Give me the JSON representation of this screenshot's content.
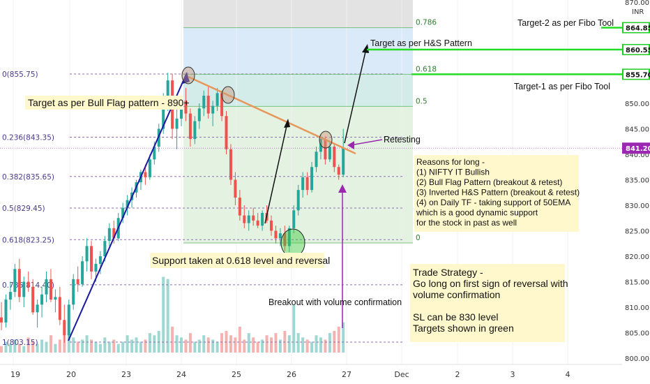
{
  "chart_data": {
    "type": "candlestick",
    "currency": "INR",
    "top_tick_partial": "870.00",
    "y_ticks": [
      "850.00",
      "845.00",
      "840.00",
      "835.00",
      "830.00",
      "825.00",
      "820.00",
      "815.00",
      "810.00",
      "805.00",
      "800.00"
    ],
    "x_ticks": [
      "19",
      "20",
      "23",
      "24",
      "25",
      "26",
      "27",
      "Dec",
      "2",
      "3",
      "4"
    ],
    "ylim": [
      799,
      871
    ],
    "price_badges": [
      {
        "value": "864.85",
        "color": "#22cc22"
      },
      {
        "value": "860.55",
        "color": "#22cc22"
      },
      {
        "value": "855.70",
        "color": "#22cc22"
      },
      {
        "value": "841.20",
        "color": "#9c27b0"
      }
    ],
    "fib_left": [
      {
        "label": "0(855.75)",
        "price": 855.75
      },
      {
        "label": "0.236(843.35)",
        "price": 843.35
      },
      {
        "label": "0.382(835.65)",
        "price": 835.65
      },
      {
        "label": "0.5(829.45)",
        "price": 829.45
      },
      {
        "label": "0.618(823.25)",
        "price": 823.25
      },
      {
        "label": "0.786(814.40)",
        "price": 814.4
      },
      {
        "label": "1(803.15)",
        "price": 803.15
      }
    ],
    "fib_right": [
      {
        "label": "0.786",
        "price": 864.85
      },
      {
        "label": "0.618",
        "price": 855.7
      },
      {
        "label": "0.5",
        "price": 849.4
      },
      {
        "label": "0",
        "price": 822.6
      }
    ],
    "series": [
      {
        "values": [
          {
            "o": 808.0,
            "h": 811.0,
            "l": 805.5,
            "c": 807.0
          },
          {
            "o": 807.0,
            "h": 812.5,
            "l": 806.0,
            "c": 811.5
          },
          {
            "o": 811.5,
            "h": 815.0,
            "l": 809.5,
            "c": 813.0
          },
          {
            "o": 813.0,
            "h": 818.5,
            "l": 812.0,
            "c": 817.5
          },
          {
            "o": 817.5,
            "h": 819.5,
            "l": 811.0,
            "c": 812.0
          },
          {
            "o": 812.0,
            "h": 816.0,
            "l": 810.0,
            "c": 815.0
          },
          {
            "o": 815.0,
            "h": 817.0,
            "l": 813.0,
            "c": 814.0
          },
          {
            "o": 814.0,
            "h": 815.5,
            "l": 808.5,
            "c": 809.0
          },
          {
            "o": 809.0,
            "h": 811.5,
            "l": 806.0,
            "c": 810.5
          },
          {
            "o": 810.5,
            "h": 814.0,
            "l": 808.0,
            "c": 812.5
          },
          {
            "o": 812.5,
            "h": 817.0,
            "l": 811.0,
            "c": 815.5
          },
          {
            "o": 815.5,
            "h": 817.5,
            "l": 811.0,
            "c": 811.5
          },
          {
            "o": 811.5,
            "h": 813.5,
            "l": 809.0,
            "c": 812.0
          },
          {
            "o": 812.0,
            "h": 814.0,
            "l": 806.5,
            "c": 807.5
          },
          {
            "o": 807.5,
            "h": 810.5,
            "l": 803.0,
            "c": 804.5
          },
          {
            "o": 804.5,
            "h": 811.5,
            "l": 803.8,
            "c": 810.5
          },
          {
            "o": 810.5,
            "h": 816.5,
            "l": 809.5,
            "c": 815.5
          },
          {
            "o": 815.5,
            "h": 818.0,
            "l": 813.0,
            "c": 814.5
          },
          {
            "o": 814.5,
            "h": 820.0,
            "l": 814.0,
            "c": 819.0
          },
          {
            "o": 819.0,
            "h": 823.5,
            "l": 817.0,
            "c": 822.0
          },
          {
            "o": 822.0,
            "h": 823.0,
            "l": 815.5,
            "c": 817.0
          },
          {
            "o": 817.0,
            "h": 819.5,
            "l": 815.0,
            "c": 818.5
          },
          {
            "o": 818.5,
            "h": 821.0,
            "l": 816.5,
            "c": 820.0
          },
          {
            "o": 820.0,
            "h": 824.0,
            "l": 819.0,
            "c": 823.0
          },
          {
            "o": 823.0,
            "h": 826.5,
            "l": 822.0,
            "c": 825.5
          },
          {
            "o": 825.5,
            "h": 827.0,
            "l": 822.5,
            "c": 823.5
          },
          {
            "o": 823.5,
            "h": 828.5,
            "l": 823.0,
            "c": 827.5
          },
          {
            "o": 827.5,
            "h": 830.5,
            "l": 826.5,
            "c": 829.5
          },
          {
            "o": 829.5,
            "h": 832.0,
            "l": 828.0,
            "c": 831.0
          },
          {
            "o": 831.0,
            "h": 833.5,
            "l": 829.5,
            "c": 832.5
          },
          {
            "o": 832.5,
            "h": 835.0,
            "l": 831.5,
            "c": 834.5
          },
          {
            "o": 834.5,
            "h": 837.0,
            "l": 833.0,
            "c": 836.5
          },
          {
            "o": 836.5,
            "h": 838.0,
            "l": 834.0,
            "c": 835.5
          },
          {
            "o": 835.5,
            "h": 840.0,
            "l": 835.0,
            "c": 839.0
          },
          {
            "o": 839.0,
            "h": 842.5,
            "l": 838.0,
            "c": 841.5
          },
          {
            "o": 841.5,
            "h": 846.0,
            "l": 840.5,
            "c": 845.0
          },
          {
            "o": 845.0,
            "h": 852.0,
            "l": 844.0,
            "c": 851.0
          },
          {
            "o": 851.0,
            "h": 856.0,
            "l": 848.5,
            "c": 854.5
          },
          {
            "o": 854.5,
            "h": 855.8,
            "l": 843.0,
            "c": 845.0
          },
          {
            "o": 845.0,
            "h": 849.0,
            "l": 841.0,
            "c": 847.0
          },
          {
            "o": 847.0,
            "h": 851.5,
            "l": 845.5,
            "c": 850.5
          },
          {
            "o": 850.5,
            "h": 853.0,
            "l": 846.5,
            "c": 848.0
          },
          {
            "o": 848.0,
            "h": 849.0,
            "l": 841.5,
            "c": 843.0
          },
          {
            "o": 843.0,
            "h": 847.5,
            "l": 842.0,
            "c": 846.5
          },
          {
            "o": 846.5,
            "h": 850.0,
            "l": 845.0,
            "c": 849.0
          },
          {
            "o": 849.0,
            "h": 852.5,
            "l": 847.5,
            "c": 851.5
          },
          {
            "o": 851.5,
            "h": 853.5,
            "l": 847.0,
            "c": 848.0
          },
          {
            "o": 848.0,
            "h": 850.5,
            "l": 845.5,
            "c": 849.5
          },
          {
            "o": 849.5,
            "h": 853.0,
            "l": 848.5,
            "c": 852.0
          },
          {
            "o": 852.0,
            "h": 852.5,
            "l": 846.5,
            "c": 847.5
          },
          {
            "o": 847.5,
            "h": 848.5,
            "l": 840.0,
            "c": 841.0
          },
          {
            "o": 841.0,
            "h": 842.0,
            "l": 834.0,
            "c": 835.0
          },
          {
            "o": 835.0,
            "h": 836.5,
            "l": 830.0,
            "c": 831.5
          },
          {
            "o": 831.5,
            "h": 833.0,
            "l": 827.0,
            "c": 828.0
          },
          {
            "o": 828.0,
            "h": 830.0,
            "l": 825.5,
            "c": 826.5
          },
          {
            "o": 826.5,
            "h": 829.0,
            "l": 825.0,
            "c": 828.0
          },
          {
            "o": 828.0,
            "h": 829.5,
            "l": 826.0,
            "c": 827.0
          },
          {
            "o": 827.0,
            "h": 828.5,
            "l": 825.5,
            "c": 826.0
          },
          {
            "o": 826.0,
            "h": 829.0,
            "l": 825.0,
            "c": 828.5
          },
          {
            "o": 828.5,
            "h": 830.0,
            "l": 826.5,
            "c": 827.0
          },
          {
            "o": 827.0,
            "h": 828.0,
            "l": 824.0,
            "c": 825.0
          },
          {
            "o": 825.0,
            "h": 826.0,
            "l": 822.5,
            "c": 823.5
          },
          {
            "o": 823.5,
            "h": 825.5,
            "l": 822.0,
            "c": 824.5
          },
          {
            "o": 824.5,
            "h": 826.0,
            "l": 821.0,
            "c": 822.0
          },
          {
            "o": 822.0,
            "h": 826.0,
            "l": 820.8,
            "c": 825.5
          },
          {
            "o": 825.5,
            "h": 830.0,
            "l": 824.5,
            "c": 829.0
          },
          {
            "o": 829.0,
            "h": 834.0,
            "l": 828.0,
            "c": 833.0
          },
          {
            "o": 833.0,
            "h": 836.5,
            "l": 831.5,
            "c": 835.5
          },
          {
            "o": 835.5,
            "h": 836.5,
            "l": 832.0,
            "c": 833.0
          },
          {
            "o": 833.0,
            "h": 838.5,
            "l": 832.5,
            "c": 837.5
          },
          {
            "o": 837.5,
            "h": 841.5,
            "l": 836.5,
            "c": 840.5
          },
          {
            "o": 840.5,
            "h": 844.0,
            "l": 839.0,
            "c": 843.0
          },
          {
            "o": 843.0,
            "h": 843.5,
            "l": 838.0,
            "c": 839.0
          },
          {
            "o": 839.0,
            "h": 842.5,
            "l": 838.5,
            "c": 841.5
          },
          {
            "o": 841.5,
            "h": 842.0,
            "l": 836.5,
            "c": 837.5
          },
          {
            "o": 837.5,
            "h": 838.0,
            "l": 835.0,
            "c": 836.0
          },
          {
            "o": 836.0,
            "h": 845.0,
            "l": 835.5,
            "c": 841.2
          }
        ]
      },
      {
        "name": "volume",
        "values": [
          3,
          5,
          4,
          6,
          4,
          3,
          7,
          5,
          4,
          6,
          5,
          8,
          4,
          6,
          14,
          9,
          7,
          5,
          6,
          8,
          6,
          5,
          4,
          7,
          5,
          6,
          4,
          5,
          8,
          6,
          7,
          5,
          6,
          9,
          8,
          10,
          35,
          34,
          12,
          8,
          7,
          6,
          9,
          5,
          6,
          8,
          7,
          6,
          5,
          9,
          10,
          8,
          7,
          12,
          6,
          9,
          7,
          5,
          6,
          8,
          7,
          9,
          6,
          10,
          8,
          22,
          9,
          7,
          6,
          5,
          8,
          7,
          6,
          9,
          10,
          12,
          14
        ]
      }
    ],
    "annotations": {
      "bull_flag": "Target as per Bull Flag pattern - 890+",
      "hs_target": "Target as per H&S Pattern",
      "target2": "Target-2 as per Fibo Tool",
      "target1": "Target-1 as per Fibo Tool",
      "retesting": "Retesting",
      "support": "Support taken at 0.618 level and reversal",
      "breakout": "Breakout with volume confirmation",
      "reasons": [
        "Reasons for long -",
        "(1) NIFTY IT Bullish",
        "(2) Bull Flag Pattern (breakout & retest)",
        "(3) Inverted H&S Pattern (breakout & retest)",
        "(4) on Daily TF - taking support of 50EMA",
        "  which is a good dynamic support",
        "for the stock in past as well"
      ],
      "strategy": [
        "Trade Strategy -",
        "Go long on first sign of reversal with",
        "volume confirmation",
        "",
        "SL can be 830 level",
        "Targets shown in green"
      ]
    },
    "colors": {
      "up": "#26a69a",
      "down": "#ef5350",
      "target_line": "#22dd22",
      "current_price": "#9c27b0",
      "trendline": "#e8975a",
      "flagpole": "#1a1aa0",
      "note_bg": "#fff8cc"
    }
  }
}
